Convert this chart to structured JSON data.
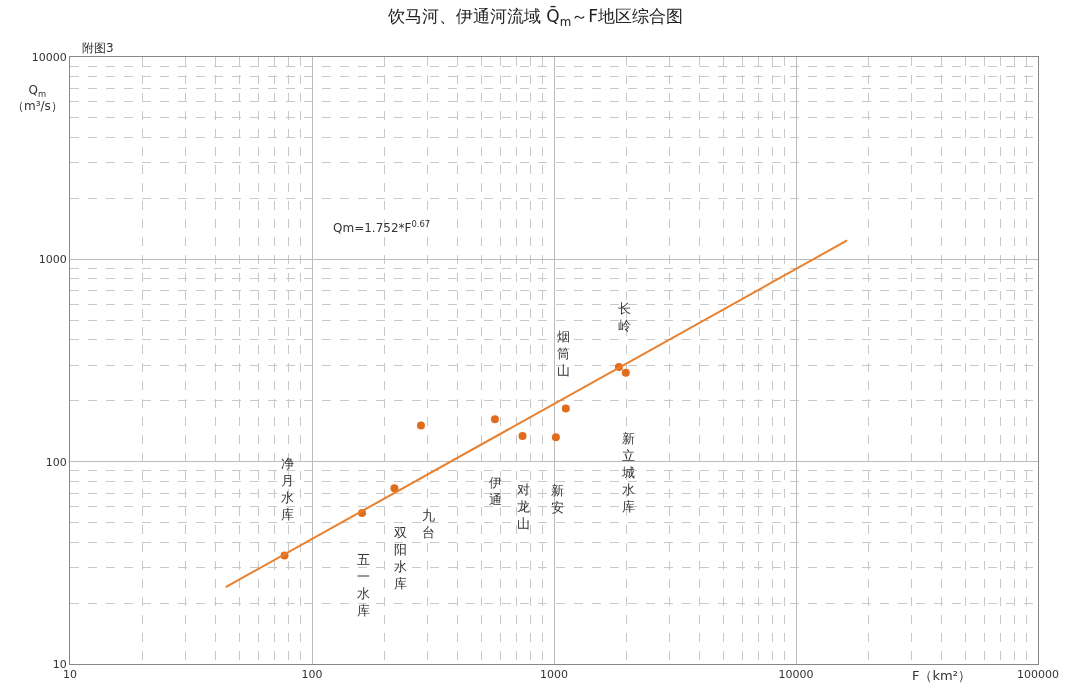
{
  "chart_data": {
    "type": "scatter",
    "title": "饮马河、伊通河流域 Q̄$_{m}$～F地区综合图",
    "xlabel": "F（km²）",
    "ylabel": "Q$_{m}$\n（m³/s）",
    "log": "xy",
    "grid": true,
    "marker": "circle",
    "xlim": [
      10,
      100000
    ],
    "ylim": [
      10,
      10000
    ],
    "xticks": [
      10,
      100,
      1000,
      10000,
      100000
    ],
    "yticks": [
      10,
      100,
      1000,
      10000
    ],
    "series": [
      {
        "color": "#e06c1e",
        "x": [
          77,
          161,
          219,
          282,
          570,
          741,
          1018,
          1119,
          1855,
          1980
        ],
        "values": [
          34.4,
          55.7,
          73.8,
          151,
          162,
          134,
          132,
          183,
          294,
          275
        ]
      },
      {
        "type": "line",
        "color": "#e8802e",
        "marker": "none",
        "line_style": "solid",
        "x": [
          44,
          16260
        ],
        "values": [
          24,
          1240
        ]
      }
    ],
    "annotations": [
      "附图3",
      "Qm=1.752*F$^{0.67}$",
      "净月水库",
      "五一水库",
      "双阳水库",
      "九台",
      "伊通",
      "对龙山",
      "新安",
      "烟筒山",
      "长岭",
      "新立城水库"
    ]
  }
}
